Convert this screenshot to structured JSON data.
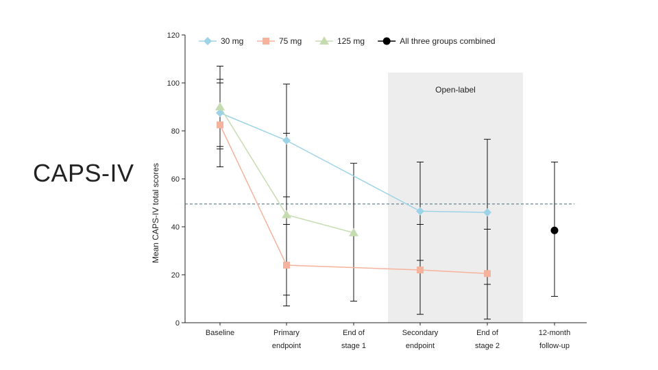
{
  "slide": {
    "title": "CAPS-IV"
  },
  "colors": {
    "mg30": "#9dd3e6",
    "mg75": "#f5b29c",
    "mg125": "#c5dcb0",
    "combined": "#000000",
    "shade": "#ededed",
    "threshold": "#3f6f7f"
  },
  "chart_data": {
    "type": "line",
    "title": "",
    "ylabel": "Mean CAPS-IV total scores",
    "xlabel": "",
    "ylim": [
      0,
      120
    ],
    "yticks": [
      0,
      20,
      40,
      60,
      80,
      100,
      120
    ],
    "categories": [
      "Baseline",
      "Primary endpoint",
      "End of stage 1",
      "Secondary endpoint",
      "End of stage 2",
      "12-month follow-up"
    ],
    "category_lines": [
      [
        "Baseline"
      ],
      [
        "Primary",
        "endpoint"
      ],
      [
        "End of",
        "stage 1"
      ],
      [
        "Secondary",
        "endpoint"
      ],
      [
        "End of",
        "stage 2"
      ],
      [
        "12-month",
        "follow-up"
      ]
    ],
    "threshold": 49.5,
    "shaded_region": {
      "label": "Open-label",
      "from_category": 3,
      "to_category": 4
    },
    "legend": [
      "30 mg",
      "75 mg",
      "125 mg",
      "All three groups combined"
    ],
    "series": [
      {
        "name": "30 mg",
        "marker": "diamond",
        "color_key": "mg30",
        "values": [
          87.5,
          76,
          null,
          46.5,
          46,
          null
        ],
        "lower": [
          72.5,
          52.5,
          null,
          26,
          16,
          null
        ],
        "upper": [
          101.5,
          99.5,
          null,
          67,
          76.5,
          null
        ]
      },
      {
        "name": "75 mg",
        "marker": "square",
        "color_key": "mg75",
        "values": [
          82.5,
          24,
          null,
          22,
          20.5,
          null
        ],
        "lower": [
          65,
          7,
          null,
          3.5,
          1.5,
          null
        ],
        "upper": [
          100,
          41,
          null,
          41,
          39,
          null
        ]
      },
      {
        "name": "125 mg",
        "marker": "triangle",
        "color_key": "mg125",
        "values": [
          90,
          45,
          37.5,
          null,
          null,
          null
        ],
        "lower": [
          73.5,
          11.5,
          9,
          null,
          null,
          null
        ],
        "upper": [
          107,
          79,
          66.5,
          null,
          null,
          null
        ]
      },
      {
        "name": "All three groups combined",
        "marker": "circle",
        "color_key": "combined",
        "values": [
          null,
          null,
          null,
          null,
          null,
          38.5
        ],
        "lower": [
          null,
          null,
          null,
          null,
          null,
          11
        ],
        "upper": [
          null,
          null,
          null,
          null,
          null,
          67
        ]
      }
    ]
  }
}
